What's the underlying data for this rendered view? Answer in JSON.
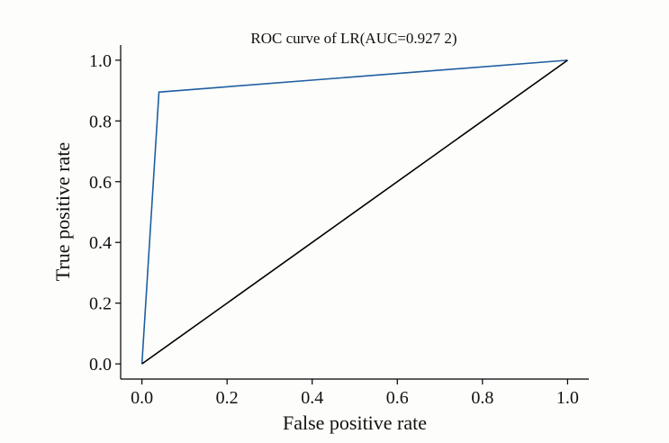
{
  "chart_data": {
    "type": "line",
    "title": "ROC curve of LR(AUC=0.927 2)",
    "xlabel": "False positive rate",
    "ylabel": "True positive rate",
    "xlim": [
      -0.05,
      1.05
    ],
    "ylim": [
      -0.05,
      1.05
    ],
    "x_ticks": [
      "0.0",
      "0.2",
      "0.4",
      "0.6",
      "0.8",
      "1.0"
    ],
    "y_ticks": [
      "0.0",
      "0.2",
      "0.4",
      "0.6",
      "0.8",
      "1.0"
    ],
    "grid": false,
    "legend": "none",
    "series": [
      {
        "x": [
          0.0,
          0.04,
          1.0
        ],
        "y": [
          0.0,
          0.895,
          1.0
        ],
        "color": "#1f5fa0"
      },
      {
        "x": [
          0.0,
          1.0
        ],
        "y": [
          0.0,
          1.0
        ],
        "color": "#000000"
      }
    ]
  }
}
